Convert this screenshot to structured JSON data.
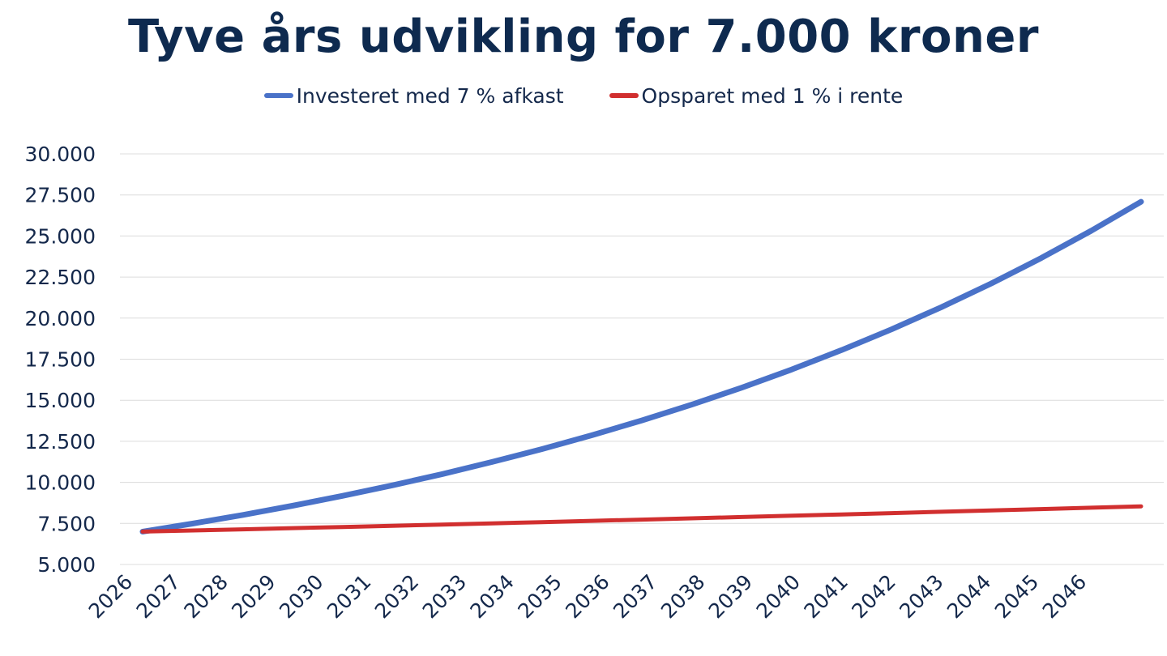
{
  "chart_data": {
    "type": "line",
    "title": "Tyve års udvikling for 7.000 kroner",
    "xlabel": "",
    "ylabel": "",
    "x": [
      "2026",
      "2027",
      "2028",
      "2029",
      "2030",
      "2031",
      "2032",
      "2033",
      "2034",
      "2035",
      "2036",
      "2037",
      "2038",
      "2039",
      "2040",
      "2041",
      "2042",
      "2043",
      "2044",
      "2045",
      "2046"
    ],
    "yticks": [
      "5.000",
      "7.500",
      "10.000",
      "12.500",
      "15.000",
      "17.500",
      "20.000",
      "22.500",
      "25.000",
      "27.500",
      "30.000"
    ],
    "ylim": [
      5000,
      30000
    ],
    "grid": true,
    "legend_position": "top-center",
    "series": [
      {
        "name": "Investeret med 7 % afkast",
        "color": "#4a72c8",
        "values": [
          7000,
          7490,
          8014,
          8575,
          9176,
          9818,
          10505,
          11241,
          12027,
          12869,
          13770,
          14734,
          15765,
          16869,
          18050,
          19313,
          20665,
          22112,
          23660,
          25316,
          27088
        ]
      },
      {
        "name": "Opsparet med 1 % i rente",
        "color": "#d12f2f",
        "values": [
          7000,
          7070,
          7141,
          7212,
          7284,
          7357,
          7431,
          7505,
          7580,
          7656,
          7732,
          7810,
          7888,
          7967,
          8047,
          8127,
          8208,
          8290,
          8373,
          8457,
          8542
        ]
      }
    ]
  }
}
